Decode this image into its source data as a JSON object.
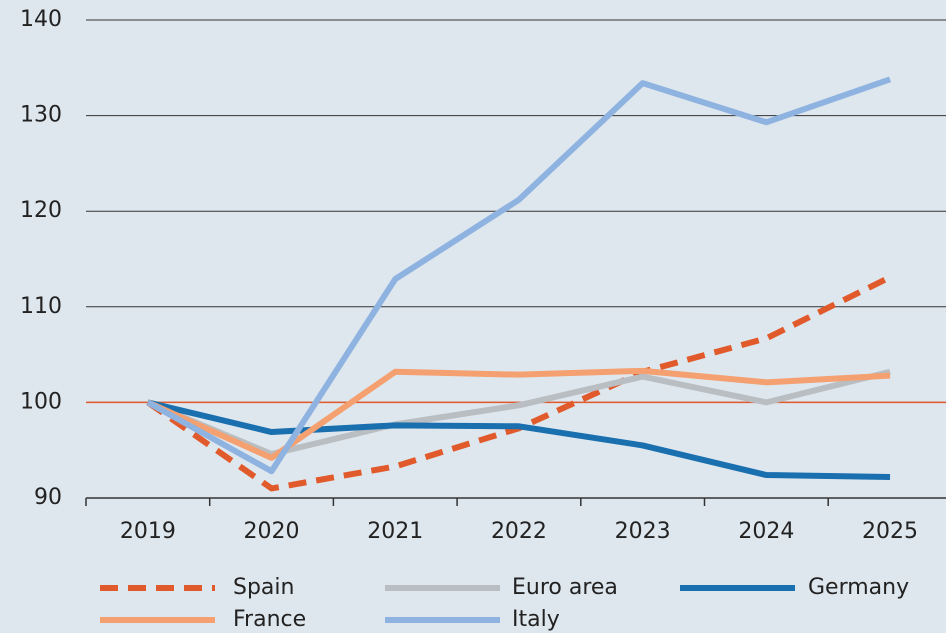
{
  "chart_data": {
    "type": "line",
    "categories": [
      "2019",
      "2020",
      "2021",
      "2022",
      "2023",
      "2024",
      "2025"
    ],
    "series": [
      {
        "name": "Spain",
        "color": "#e05a2b",
        "dashed": true,
        "values": [
          100,
          91,
          93.3,
          97.3,
          103.2,
          106.7,
          113.1
        ]
      },
      {
        "name": "Euro area",
        "color": "#b9bec2",
        "values": [
          100,
          94.6,
          97.7,
          99.7,
          102.7,
          100.0,
          103.2
        ]
      },
      {
        "name": "Germany",
        "color": "#1a6faf",
        "values": [
          100,
          96.9,
          97.6,
          97.5,
          95.5,
          92.4,
          92.2
        ]
      },
      {
        "name": "France",
        "color": "#f4a070",
        "values": [
          100,
          94.2,
          103.2,
          102.9,
          103.3,
          102.1,
          102.8
        ]
      },
      {
        "name": "Italy",
        "color": "#8fb3e0",
        "values": [
          100,
          92.8,
          112.9,
          121.2,
          133.4,
          129.3,
          133.8
        ]
      }
    ],
    "ylim": [
      90,
      140
    ],
    "yticks": [
      90,
      100,
      110,
      120,
      130,
      140
    ],
    "grid": true,
    "reference_line": {
      "value": 100,
      "color": "#e05a2b"
    },
    "legend": "bottom"
  }
}
